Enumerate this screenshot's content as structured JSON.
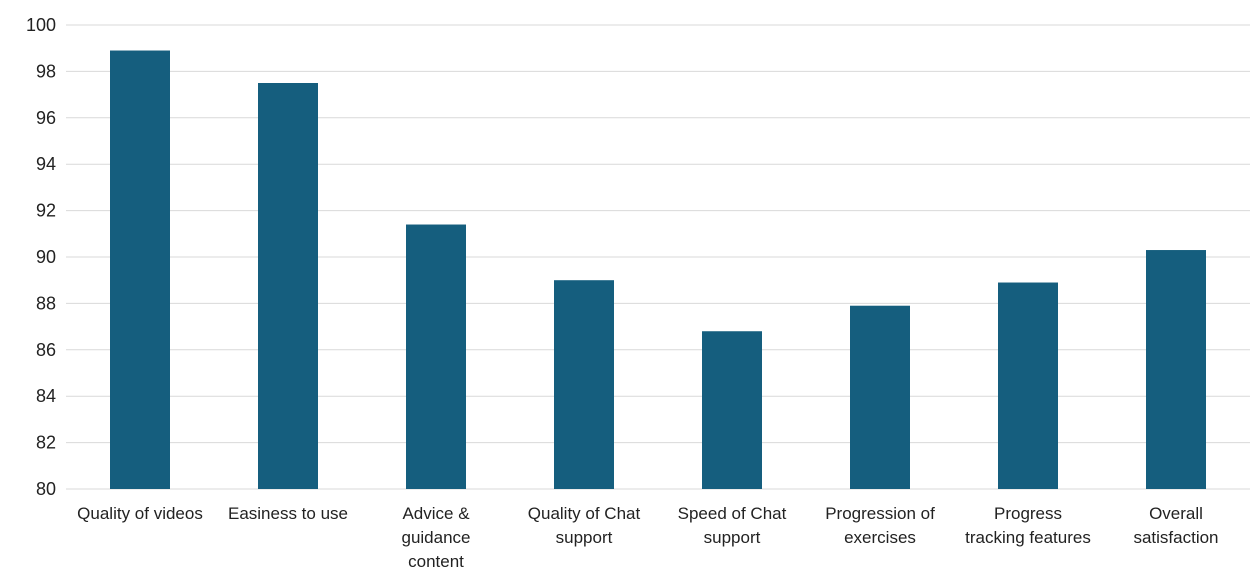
{
  "chart_data": {
    "type": "bar",
    "categories": [
      [
        "Quality of videos"
      ],
      [
        "Easiness to use"
      ],
      [
        "Advice &",
        "guidance",
        "content"
      ],
      [
        "Quality of Chat",
        "support"
      ],
      [
        "Speed of Chat",
        "support"
      ],
      [
        "Progression of",
        "exercises"
      ],
      [
        "Progress",
        "tracking features"
      ],
      [
        "Overall",
        "satisfaction"
      ]
    ],
    "values": [
      98.9,
      97.5,
      91.4,
      89.0,
      86.8,
      87.9,
      88.9,
      90.3
    ],
    "ylim": [
      80,
      100
    ],
    "yticks": [
      "80",
      "82",
      "84",
      "86",
      "88",
      "90",
      "92",
      "94",
      "96",
      "98",
      "100"
    ],
    "grid": true,
    "legend": "none",
    "title": "",
    "xlabel": "",
    "ylabel": "",
    "bar_color": "#155e7e",
    "grid_color": "#d9d9d9"
  }
}
